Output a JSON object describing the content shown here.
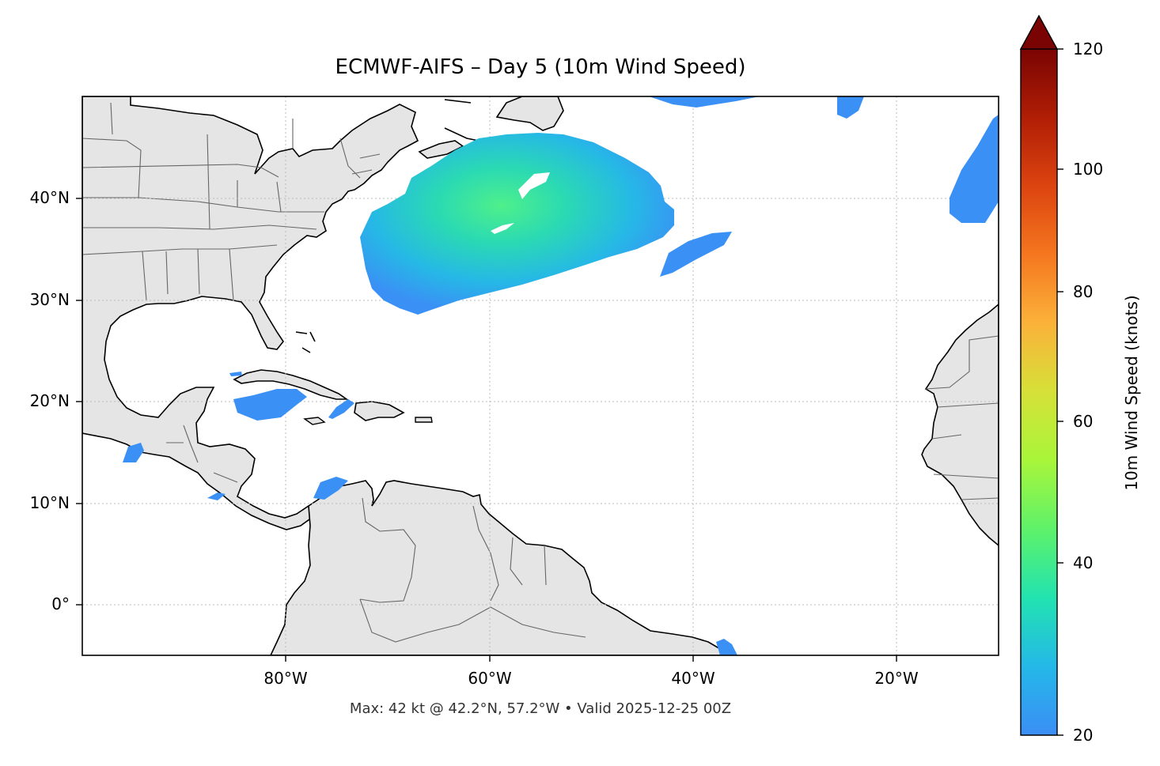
{
  "title": "ECMWF-AIFS – Day 5 (10m Wind Speed)",
  "footnote": "Max: 42 kt @ 42.2°N, 57.2°W • Valid 2025-12-25 00Z",
  "map": {
    "lon_range": [
      -100,
      -10
    ],
    "lat_range": [
      -5,
      50
    ],
    "lat_ticks": [
      {
        "value": 40,
        "label": "40°N"
      },
      {
        "value": 30,
        "label": "30°N"
      },
      {
        "value": 20,
        "label": "20°N"
      },
      {
        "value": 10,
        "label": "10°N"
      },
      {
        "value": 0,
        "label": "0°"
      }
    ],
    "lon_ticks": [
      {
        "value": -80,
        "label": "80°W"
      },
      {
        "value": -60,
        "label": "60°W"
      },
      {
        "value": -40,
        "label": "40°W"
      },
      {
        "value": -20,
        "label": "20°W"
      }
    ],
    "land_color": "#e5e5e5",
    "coast_color": "#000000",
    "border_color": "#666666",
    "gridline_style": "dotted"
  },
  "colorbar": {
    "label": "10m Wind Speed (knots)",
    "min": 20,
    "max": 120,
    "extend": "max",
    "ticks": [
      {
        "value": 20,
        "label": "20"
      },
      {
        "value": 40,
        "label": "40"
      },
      {
        "value": 60,
        "label": "60"
      },
      {
        "value": 80,
        "label": "80"
      },
      {
        "value": 100,
        "label": "100"
      },
      {
        "value": 120,
        "label": "120"
      }
    ],
    "colors": [
      "#3b8ef5",
      "#22bfe0",
      "#22e7a3",
      "#8ff540",
      "#d4e33a",
      "#fbb03a",
      "#f06a1e",
      "#cc3208",
      "#7a0403"
    ]
  },
  "wind_features": [
    {
      "name": "North Atlantic cyclone wind field",
      "max_kt": 42,
      "max_lat": 42.2,
      "max_lon": -57.2
    }
  ]
}
